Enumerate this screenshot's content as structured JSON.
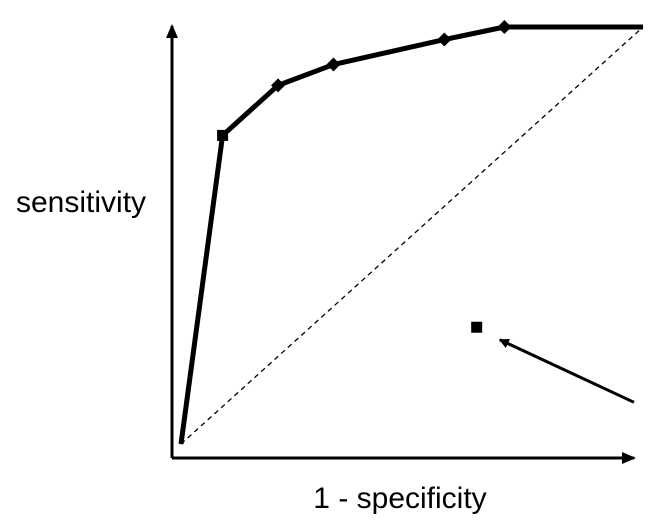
{
  "chart_data": {
    "type": "line",
    "title": "",
    "xlabel": "1 - specificity",
    "ylabel": "sensitivity",
    "xlim": [
      0,
      1
    ],
    "ylim": [
      0,
      1
    ],
    "grid": false,
    "legend": "none",
    "series": [
      {
        "style": "solid-thick",
        "color": "#000000",
        "points": [
          {
            "x": 0.0,
            "y": 0.0,
            "marker": "none"
          },
          {
            "x": 0.09,
            "y": 0.74,
            "marker": "square"
          },
          {
            "x": 0.21,
            "y": 0.86,
            "marker": "diamond"
          },
          {
            "x": 0.33,
            "y": 0.91,
            "marker": "diamond"
          },
          {
            "x": 0.57,
            "y": 0.97,
            "marker": "diamond"
          },
          {
            "x": 0.7,
            "y": 1.0,
            "marker": "diamond"
          },
          {
            "x": 1.0,
            "y": 1.0,
            "marker": "none"
          }
        ]
      },
      {
        "style": "dashed",
        "color": "#000000",
        "points": [
          {
            "x": 0.0,
            "y": 0.0,
            "marker": "none"
          },
          {
            "x": 1.0,
            "y": 1.0,
            "marker": "none"
          }
        ]
      }
    ],
    "annotations": [
      {
        "type": "point",
        "marker": "square",
        "x": 0.64,
        "y": 0.28
      },
      {
        "type": "arrow",
        "from": {
          "x": 1.0,
          "y": 0.1
        },
        "to": {
          "x": 0.69,
          "y": 0.25
        }
      }
    ]
  }
}
